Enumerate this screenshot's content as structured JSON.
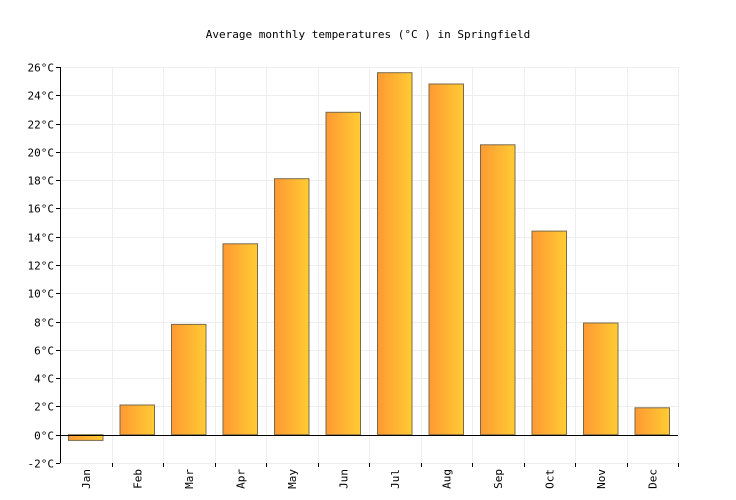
{
  "chart_data": {
    "type": "bar",
    "title": "Average monthly temperatures (°C ) in Springfield",
    "xlabel": "",
    "ylabel": "",
    "categories": [
      "Jan",
      "Feb",
      "Mar",
      "Apr",
      "May",
      "Jun",
      "Jul",
      "Aug",
      "Sep",
      "Oct",
      "Nov",
      "Dec"
    ],
    "values": [
      -0.4,
      2.1,
      7.8,
      13.5,
      18.1,
      22.8,
      25.6,
      24.8,
      20.5,
      14.4,
      7.9,
      1.9
    ],
    "ylim": [
      -2,
      26
    ],
    "yticks": [
      -2,
      0,
      2,
      4,
      6,
      8,
      10,
      12,
      14,
      16,
      18,
      20,
      22,
      24,
      26
    ],
    "ytick_labels": [
      "-2°C",
      "0°C",
      "2°C",
      "4°C",
      "6°C",
      "8°C",
      "10°C",
      "12°C",
      "14°C",
      "16°C",
      "18°C",
      "20°C",
      "22°C",
      "24°C",
      "26°C"
    ],
    "grid": true,
    "legend": "none",
    "colors": {
      "bar_left": "#ff9933",
      "bar_right": "#ffcc33",
      "bar_stroke": "#7a6a4a",
      "grid": "#eeeeee",
      "zero_line": "#000000"
    }
  }
}
